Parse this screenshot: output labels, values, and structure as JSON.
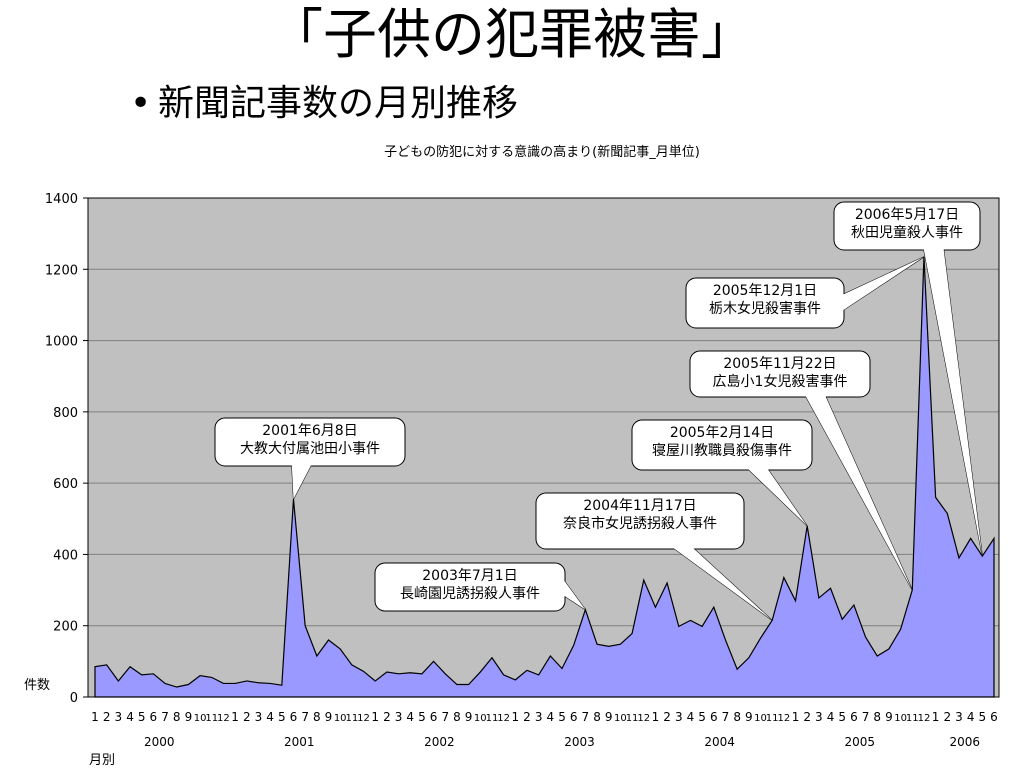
{
  "slide": {
    "title": "「子供の犯罪被害」",
    "bullet_marker": "•",
    "bullet_text": "新聞記事数の月別推移"
  },
  "chart_data": {
    "type": "area",
    "title": "子どもの防犯に対する意識の高まり(新聞記事_月単位)",
    "ylabel": "件数",
    "xlabel": "月別",
    "ylim": [
      0,
      1400
    ],
    "yticks": [
      0,
      200,
      400,
      600,
      800,
      1000,
      1200,
      1400
    ],
    "grid": true,
    "colors": {
      "fill": "#9999ff",
      "plot_bg": "#c0c0c0",
      "grid": "#808080"
    },
    "x_month_labels": [
      "1",
      "2",
      "3",
      "4",
      "5",
      "6",
      "7",
      "8",
      "9",
      "10",
      "11",
      "12",
      "1",
      "2",
      "3",
      "4",
      "5",
      "6",
      "7",
      "8",
      "9",
      "10",
      "11",
      "12",
      "1",
      "2",
      "3",
      "4",
      "5",
      "6",
      "7",
      "8",
      "9",
      "10",
      "11",
      "12",
      "1",
      "2",
      "3",
      "4",
      "5",
      "6",
      "7",
      "8",
      "9",
      "10",
      "11",
      "12",
      "1",
      "2",
      "3",
      "4",
      "5",
      "6",
      "7",
      "8",
      "9",
      "10",
      "11",
      "12",
      "1",
      "2",
      "3",
      "4",
      "5",
      "6",
      "7",
      "8",
      "9",
      "10",
      "11",
      "12",
      "1",
      "2",
      "3",
      "4",
      "5",
      "6"
    ],
    "years": [
      {
        "label": "2000",
        "start": 0,
        "count": 12
      },
      {
        "label": "2001",
        "start": 12,
        "count": 12
      },
      {
        "label": "2002",
        "start": 24,
        "count": 12
      },
      {
        "label": "2003",
        "start": 36,
        "count": 12
      },
      {
        "label": "2004",
        "start": 48,
        "count": 12
      },
      {
        "label": "2005",
        "start": 60,
        "count": 12
      },
      {
        "label": "2006",
        "start": 72,
        "count": 6
      }
    ],
    "values": [
      85,
      90,
      45,
      85,
      62,
      65,
      38,
      28,
      35,
      60,
      55,
      38,
      38,
      45,
      40,
      38,
      33,
      555,
      200,
      115,
      160,
      135,
      90,
      72,
      45,
      70,
      65,
      68,
      65,
      100,
      65,
      35,
      35,
      70,
      110,
      62,
      48,
      75,
      62,
      115,
      80,
      145,
      245,
      148,
      142,
      148,
      178,
      328,
      252,
      320,
      198,
      215,
      198,
      252,
      160,
      78,
      110,
      165,
      215,
      335,
      270,
      480,
      278,
      305,
      218,
      258,
      168,
      115,
      135,
      190,
      300,
      1235,
      560,
      515,
      390,
      445,
      395,
      445
    ],
    "annotations": [
      {
        "lines": [
          "2001年6月8日",
          "大教大付属池田小事件"
        ],
        "index": 17
      },
      {
        "lines": [
          "2003年7月1日",
          "長崎園児誘拐殺人事件"
        ],
        "index": 42
      },
      {
        "lines": [
          "2004年11月17日",
          "奈良市女児誘拐殺人事件"
        ],
        "index": 58
      },
      {
        "lines": [
          "2005年2月14日",
          "寝屋川教職員殺傷事件"
        ],
        "index": 61
      },
      {
        "lines": [
          "2005年11月22日",
          "広島小1女児殺害事件"
        ],
        "index": 70
      },
      {
        "lines": [
          "2005年12月1日",
          "栃木女児殺害事件"
        ],
        "index": 71
      },
      {
        "lines": [
          "2006年5月17日",
          "秋田児童殺人事件"
        ],
        "index": 76
      }
    ]
  }
}
